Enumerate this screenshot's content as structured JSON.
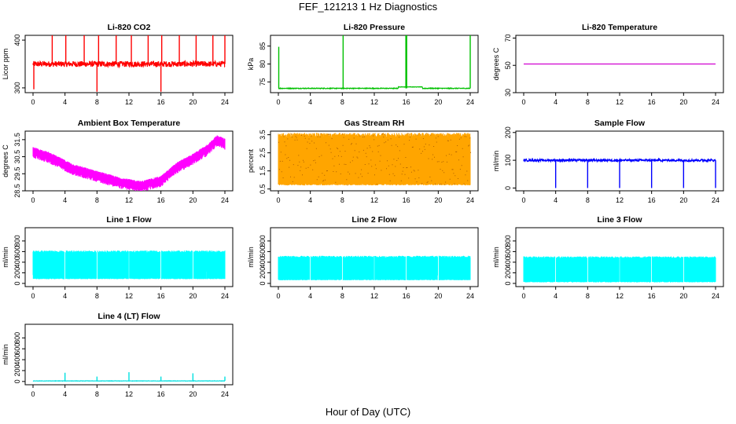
{
  "page": {
    "title": "FEF_121213  1 Hz Diagnostics",
    "x_caption": "Hour of Day (UTC)"
  },
  "chart_data": [
    {
      "type": "line",
      "title": "Li-820 CO2",
      "ylabel": "Licor ppm",
      "color": "#ff0000",
      "xlim": [
        0,
        24
      ],
      "ylim": [
        290,
        410
      ],
      "xticks": [
        0,
        4,
        8,
        12,
        16,
        20,
        24
      ],
      "yticks": [
        300,
        400
      ],
      "baseline": 350,
      "noise": 6,
      "spikes": [
        {
          "x": 2.4,
          "y": 410
        },
        {
          "x": 4.1,
          "y": 410
        },
        {
          "x": 6.4,
          "y": 410
        },
        {
          "x": 8.2,
          "y": 410
        },
        {
          "x": 10.4,
          "y": 410
        },
        {
          "x": 12.3,
          "y": 410
        },
        {
          "x": 14.4,
          "y": 410
        },
        {
          "x": 16.1,
          "y": 410
        },
        {
          "x": 18.3,
          "y": 410
        },
        {
          "x": 20.4,
          "y": 410
        },
        {
          "x": 22.5,
          "y": 410
        },
        {
          "x": 24.0,
          "y": 410
        }
      ],
      "dips": [
        {
          "x": 0.1,
          "y": 297
        },
        {
          "x": 8.0,
          "y": 292
        },
        {
          "x": 16.0,
          "y": 292
        }
      ]
    },
    {
      "type": "line",
      "title": "Li-820 Pressure",
      "ylabel": "kPa",
      "color": "#00c000",
      "xlim": [
        0,
        24
      ],
      "ylim": [
        72,
        88
      ],
      "xticks": [
        0,
        4,
        8,
        12,
        16,
        20,
        24
      ],
      "yticks": [
        75,
        80,
        85
      ],
      "baseline": 73.2,
      "noise": 0.1,
      "spikes": [
        {
          "x": 0.05,
          "y": 84.8
        },
        {
          "x": 8.1,
          "y": 88
        },
        {
          "x": 15.95,
          "y": 88
        },
        {
          "x": 16.05,
          "y": 88
        },
        {
          "x": 24.0,
          "y": 88
        }
      ],
      "dips": [],
      "bumps": [
        {
          "x0": 15.0,
          "x1": 18.0,
          "y": 73.6
        }
      ]
    },
    {
      "type": "line",
      "title": "Li-820 Temperature",
      "ylabel": "degrees C",
      "color": "#d000d0",
      "xlim": [
        0,
        24
      ],
      "ylim": [
        30,
        72
      ],
      "xticks": [
        0,
        4,
        8,
        12,
        16,
        20,
        24
      ],
      "yticks": [
        30,
        50,
        70
      ],
      "baseline": 51,
      "noise": 0,
      "spikes": [],
      "dips": []
    },
    {
      "type": "line",
      "title": "Ambient Box Temperature",
      "ylabel": "degrees C",
      "color": "#ff00ff",
      "xlim": [
        0,
        24
      ],
      "ylim": [
        28.5,
        32.0
      ],
      "xticks": [
        0,
        4,
        8,
        12,
        16,
        20,
        24
      ],
      "yticks": [
        28.5,
        29.5,
        30.5,
        31.5
      ],
      "trend": [
        {
          "x": 0,
          "y": 30.8
        },
        {
          "x": 2,
          "y": 30.5
        },
        {
          "x": 5,
          "y": 29.8
        },
        {
          "x": 8,
          "y": 29.4
        },
        {
          "x": 11,
          "y": 29.0
        },
        {
          "x": 13.5,
          "y": 28.8
        },
        {
          "x": 16,
          "y": 29.1
        },
        {
          "x": 18,
          "y": 29.9
        },
        {
          "x": 20,
          "y": 30.4
        },
        {
          "x": 22,
          "y": 31.0
        },
        {
          "x": 23,
          "y": 31.5
        },
        {
          "x": 24,
          "y": 31.3
        }
      ],
      "band": 0.55
    },
    {
      "type": "area",
      "title": "Gas Stream RH",
      "ylabel": "percent",
      "color": "#ffa500",
      "xlim": [
        0,
        24
      ],
      "ylim": [
        0.4,
        3.7
      ],
      "xticks": [
        0,
        4,
        8,
        12,
        16,
        20,
        24
      ],
      "yticks": [
        0.5,
        1.5,
        2.5,
        3.5
      ],
      "band_low": 0.7,
      "band_high": 3.6
    },
    {
      "type": "line",
      "title": "Sample Flow",
      "ylabel": "ml/min",
      "color": "#0000ff",
      "xlim": [
        0,
        24
      ],
      "ylim": [
        -10,
        205
      ],
      "xticks": [
        0,
        4,
        8,
        12,
        16,
        20,
        24
      ],
      "yticks": [
        0,
        100,
        200
      ],
      "baseline": 100,
      "noise": 4,
      "spikes": [],
      "dips": [
        {
          "x": 4.0,
          "y": 0
        },
        {
          "x": 8.0,
          "y": 0
        },
        {
          "x": 12.0,
          "y": 0
        },
        {
          "x": 16.0,
          "y": 0
        },
        {
          "x": 20.0,
          "y": 0
        },
        {
          "x": 24.0,
          "y": 0
        }
      ]
    },
    {
      "type": "area",
      "title": "Line 1 Flow",
      "ylabel": "ml/min",
      "color": "#00ffff",
      "xlim": [
        0,
        24
      ],
      "ylim": [
        -60,
        1050
      ],
      "xticks": [
        0,
        4,
        8,
        12,
        16,
        20,
        24
      ],
      "yticks": [
        0,
        200,
        400,
        600,
        800
      ],
      "band_low": 80,
      "band_high": 620,
      "gaps": [
        4,
        8,
        12,
        16,
        20
      ]
    },
    {
      "type": "area",
      "title": "Line 2 Flow",
      "ylabel": "ml/min",
      "color": "#00ffff",
      "xlim": [
        0,
        24
      ],
      "ylim": [
        -60,
        1050
      ],
      "xticks": [
        0,
        4,
        8,
        12,
        16,
        20,
        24
      ],
      "yticks": [
        0,
        200,
        400,
        600,
        800
      ],
      "band_low": 60,
      "band_high": 520,
      "gaps": [
        4,
        8,
        12,
        16,
        20
      ]
    },
    {
      "type": "area",
      "title": "Line 3 Flow",
      "ylabel": "ml/min",
      "color": "#00ffff",
      "xlim": [
        0,
        24
      ],
      "ylim": [
        -60,
        1050
      ],
      "xticks": [
        0,
        4,
        8,
        12,
        16,
        20,
        24
      ],
      "yticks": [
        0,
        200,
        400,
        600,
        800
      ],
      "band_low": 20,
      "band_high": 510,
      "gaps": [
        4,
        8,
        12,
        16,
        20
      ]
    },
    {
      "type": "line",
      "title": "Line 4 (LT) Flow",
      "ylabel": "ml/min",
      "color": "#00e0e0",
      "xlim": [
        0,
        24
      ],
      "ylim": [
        -60,
        1050
      ],
      "xticks": [
        0,
        4,
        8,
        12,
        16,
        20,
        24
      ],
      "yticks": [
        0,
        200,
        400,
        600,
        800
      ],
      "baseline": 10,
      "noise": 3,
      "spikes": [
        {
          "x": 4.0,
          "y": 160
        },
        {
          "x": 8.0,
          "y": 90
        },
        {
          "x": 12.0,
          "y": 170
        },
        {
          "x": 16.0,
          "y": 90
        },
        {
          "x": 20.0,
          "y": 150
        },
        {
          "x": 24.0,
          "y": 90
        }
      ],
      "dips": []
    }
  ]
}
